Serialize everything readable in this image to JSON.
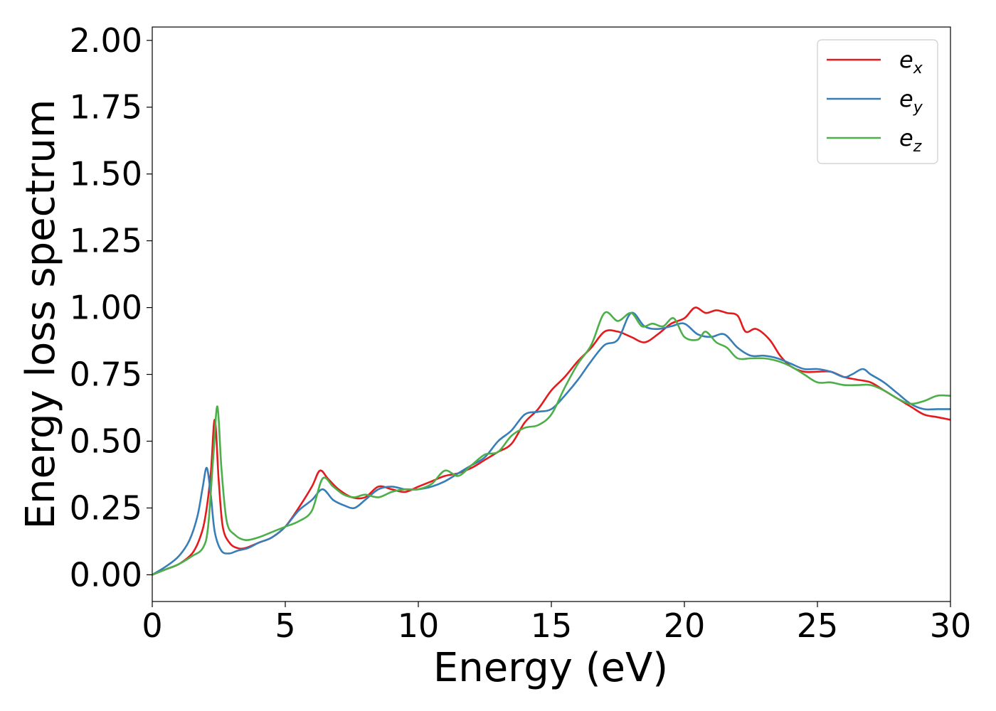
{
  "chart_data": {
    "type": "line",
    "title": "",
    "xlabel": "Energy (eV)",
    "ylabel": "Energy loss spectrum",
    "xlim": [
      0,
      30
    ],
    "ylim": [
      -0.1,
      2.05
    ],
    "xticks": [
      0,
      5,
      10,
      15,
      20,
      25,
      30
    ],
    "xtick_labels": [
      "0",
      "5",
      "10",
      "15",
      "20",
      "25",
      "30"
    ],
    "yticks": [
      0,
      0.25,
      0.5,
      0.75,
      1.0,
      1.25,
      1.5,
      1.75,
      2.0
    ],
    "ytick_labels": [
      "0.00",
      "0.25",
      "0.50",
      "0.75",
      "1.00",
      "1.25",
      "1.50",
      "1.75",
      "2.00"
    ],
    "grid": false,
    "legend_position": "top-right",
    "series": [
      {
        "name": "e_x",
        "label_main": "e",
        "label_sub": "x",
        "color": "#e41a1c",
        "points": [
          [
            0,
            0
          ],
          [
            0.5,
            0.02
          ],
          [
            1,
            0.04
          ],
          [
            1.5,
            0.08
          ],
          [
            1.8,
            0.14
          ],
          [
            2.0,
            0.22
          ],
          [
            2.2,
            0.38
          ],
          [
            2.35,
            0.58
          ],
          [
            2.5,
            0.35
          ],
          [
            2.65,
            0.18
          ],
          [
            2.9,
            0.12
          ],
          [
            3.2,
            0.1
          ],
          [
            3.5,
            0.1
          ],
          [
            4,
            0.12
          ],
          [
            4.5,
            0.14
          ],
          [
            5,
            0.18
          ],
          [
            5.5,
            0.25
          ],
          [
            6.0,
            0.33
          ],
          [
            6.3,
            0.39
          ],
          [
            6.6,
            0.36
          ],
          [
            7.0,
            0.32
          ],
          [
            7.5,
            0.29
          ],
          [
            8,
            0.29
          ],
          [
            8.5,
            0.33
          ],
          [
            9,
            0.32
          ],
          [
            9.5,
            0.31
          ],
          [
            10,
            0.33
          ],
          [
            10.5,
            0.35
          ],
          [
            11,
            0.37
          ],
          [
            11.5,
            0.38
          ],
          [
            12,
            0.4
          ],
          [
            12.5,
            0.43
          ],
          [
            13,
            0.46
          ],
          [
            13.5,
            0.49
          ],
          [
            14,
            0.57
          ],
          [
            14.5,
            0.62
          ],
          [
            15,
            0.69
          ],
          [
            15.5,
            0.74
          ],
          [
            16,
            0.8
          ],
          [
            16.5,
            0.85
          ],
          [
            17,
            0.91
          ],
          [
            17.5,
            0.91
          ],
          [
            18,
            0.89
          ],
          [
            18.5,
            0.87
          ],
          [
            19,
            0.9
          ],
          [
            19.5,
            0.94
          ],
          [
            20,
            0.96
          ],
          [
            20.4,
            1.0
          ],
          [
            20.8,
            0.98
          ],
          [
            21.2,
            0.99
          ],
          [
            21.6,
            0.98
          ],
          [
            22,
            0.97
          ],
          [
            22.3,
            0.91
          ],
          [
            22.7,
            0.92
          ],
          [
            23.2,
            0.88
          ],
          [
            23.6,
            0.82
          ],
          [
            24,
            0.78
          ],
          [
            24.5,
            0.76
          ],
          [
            25,
            0.76
          ],
          [
            25.5,
            0.76
          ],
          [
            26,
            0.74
          ],
          [
            26.5,
            0.73
          ],
          [
            27,
            0.72
          ],
          [
            27.5,
            0.69
          ],
          [
            28,
            0.66
          ],
          [
            28.5,
            0.63
          ],
          [
            29,
            0.6
          ],
          [
            29.5,
            0.59
          ],
          [
            30,
            0.58
          ]
        ]
      },
      {
        "name": "e_y",
        "label_main": "e",
        "label_sub": "y",
        "color": "#377eb8",
        "points": [
          [
            0,
            0
          ],
          [
            0.5,
            0.03
          ],
          [
            1,
            0.07
          ],
          [
            1.4,
            0.13
          ],
          [
            1.7,
            0.22
          ],
          [
            1.9,
            0.33
          ],
          [
            2.05,
            0.4
          ],
          [
            2.2,
            0.3
          ],
          [
            2.35,
            0.16
          ],
          [
            2.6,
            0.09
          ],
          [
            2.9,
            0.08
          ],
          [
            3.2,
            0.09
          ],
          [
            3.6,
            0.1
          ],
          [
            4,
            0.12
          ],
          [
            4.5,
            0.14
          ],
          [
            5,
            0.18
          ],
          [
            5.5,
            0.24
          ],
          [
            6.0,
            0.28
          ],
          [
            6.4,
            0.32
          ],
          [
            6.8,
            0.28
          ],
          [
            7.2,
            0.26
          ],
          [
            7.6,
            0.25
          ],
          [
            8,
            0.28
          ],
          [
            8.5,
            0.32
          ],
          [
            9,
            0.33
          ],
          [
            9.5,
            0.32
          ],
          [
            10,
            0.32
          ],
          [
            10.5,
            0.33
          ],
          [
            11,
            0.35
          ],
          [
            11.5,
            0.38
          ],
          [
            12,
            0.41
          ],
          [
            12.5,
            0.44
          ],
          [
            13,
            0.5
          ],
          [
            13.5,
            0.54
          ],
          [
            14,
            0.6
          ],
          [
            14.5,
            0.61
          ],
          [
            15,
            0.62
          ],
          [
            15.5,
            0.67
          ],
          [
            16,
            0.73
          ],
          [
            16.5,
            0.8
          ],
          [
            17,
            0.86
          ],
          [
            17.5,
            0.88
          ],
          [
            18,
            0.98
          ],
          [
            18.5,
            0.93
          ],
          [
            19,
            0.92
          ],
          [
            19.5,
            0.93
          ],
          [
            20,
            0.94
          ],
          [
            20.5,
            0.9
          ],
          [
            21,
            0.89
          ],
          [
            21.5,
            0.9
          ],
          [
            22,
            0.85
          ],
          [
            22.5,
            0.82
          ],
          [
            23,
            0.82
          ],
          [
            23.5,
            0.81
          ],
          [
            24,
            0.79
          ],
          [
            24.5,
            0.77
          ],
          [
            25,
            0.77
          ],
          [
            25.5,
            0.76
          ],
          [
            26,
            0.74
          ],
          [
            26.3,
            0.75
          ],
          [
            26.7,
            0.77
          ],
          [
            27,
            0.75
          ],
          [
            27.5,
            0.72
          ],
          [
            28,
            0.68
          ],
          [
            28.5,
            0.64
          ],
          [
            29,
            0.62
          ],
          [
            29.5,
            0.62
          ],
          [
            30,
            0.62
          ]
        ]
      },
      {
        "name": "e_z",
        "label_main": "e",
        "label_sub": "z",
        "color": "#4daf4a",
        "points": [
          [
            0,
            0
          ],
          [
            0.5,
            0.02
          ],
          [
            1,
            0.04
          ],
          [
            1.5,
            0.07
          ],
          [
            1.9,
            0.1
          ],
          [
            2.1,
            0.18
          ],
          [
            2.3,
            0.45
          ],
          [
            2.45,
            0.63
          ],
          [
            2.6,
            0.4
          ],
          [
            2.8,
            0.2
          ],
          [
            3.1,
            0.15
          ],
          [
            3.5,
            0.13
          ],
          [
            4,
            0.14
          ],
          [
            4.5,
            0.16
          ],
          [
            5,
            0.18
          ],
          [
            5.5,
            0.2
          ],
          [
            6.0,
            0.24
          ],
          [
            6.4,
            0.36
          ],
          [
            6.8,
            0.33
          ],
          [
            7.2,
            0.3
          ],
          [
            7.6,
            0.29
          ],
          [
            8,
            0.3
          ],
          [
            8.5,
            0.29
          ],
          [
            9,
            0.31
          ],
          [
            9.5,
            0.32
          ],
          [
            10,
            0.32
          ],
          [
            10.5,
            0.34
          ],
          [
            11,
            0.39
          ],
          [
            11.5,
            0.37
          ],
          [
            12,
            0.41
          ],
          [
            12.5,
            0.45
          ],
          [
            13,
            0.46
          ],
          [
            13.5,
            0.52
          ],
          [
            14,
            0.55
          ],
          [
            14.5,
            0.56
          ],
          [
            15,
            0.6
          ],
          [
            15.5,
            0.7
          ],
          [
            16,
            0.79
          ],
          [
            16.5,
            0.86
          ],
          [
            17,
            0.98
          ],
          [
            17.5,
            0.95
          ],
          [
            18,
            0.98
          ],
          [
            18.4,
            0.93
          ],
          [
            18.8,
            0.94
          ],
          [
            19.2,
            0.93
          ],
          [
            19.6,
            0.96
          ],
          [
            20,
            0.89
          ],
          [
            20.5,
            0.88
          ],
          [
            20.8,
            0.91
          ],
          [
            21.2,
            0.87
          ],
          [
            21.6,
            0.85
          ],
          [
            22,
            0.81
          ],
          [
            22.5,
            0.81
          ],
          [
            23,
            0.81
          ],
          [
            23.5,
            0.8
          ],
          [
            24,
            0.78
          ],
          [
            24.5,
            0.75
          ],
          [
            25,
            0.72
          ],
          [
            25.5,
            0.72
          ],
          [
            26,
            0.71
          ],
          [
            26.5,
            0.71
          ],
          [
            27,
            0.71
          ],
          [
            27.5,
            0.69
          ],
          [
            28,
            0.66
          ],
          [
            28.5,
            0.64
          ],
          [
            29,
            0.65
          ],
          [
            29.5,
            0.67
          ],
          [
            30,
            0.67
          ]
        ]
      }
    ]
  }
}
